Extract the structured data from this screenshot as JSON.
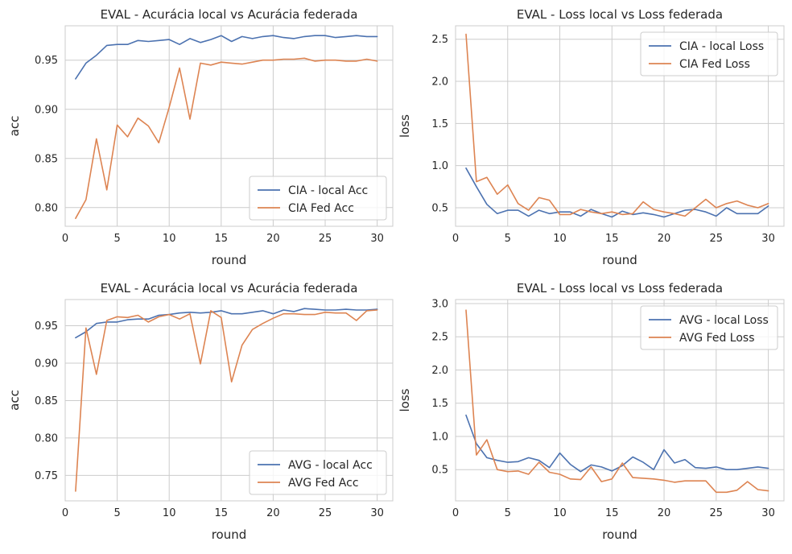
{
  "chart_data": [
    {
      "type": "line",
      "title": "EVAL - Acurácia local vs Acurácia federada",
      "xlabel": "round",
      "ylabel": "acc",
      "xlim": [
        0,
        31.5
      ],
      "ylim": [
        0.781,
        0.985
      ],
      "xticks": [
        0,
        5,
        10,
        15,
        20,
        25,
        30
      ],
      "yticks": [
        0.8,
        0.85,
        0.9,
        0.95
      ],
      "ytick_labels": [
        "0.80",
        "0.85",
        "0.90",
        "0.95"
      ],
      "grid": true,
      "legend": "lower-right",
      "x": [
        1,
        2,
        3,
        4,
        5,
        6,
        7,
        8,
        9,
        10,
        11,
        12,
        13,
        14,
        15,
        16,
        17,
        18,
        19,
        20,
        21,
        22,
        23,
        24,
        25,
        26,
        27,
        28,
        29,
        30
      ],
      "series": [
        {
          "name": "CIA - local Acc",
          "color": "#4c72b0",
          "values": [
            0.931,
            0.947,
            0.955,
            0.965,
            0.966,
            0.966,
            0.97,
            0.969,
            0.97,
            0.971,
            0.966,
            0.972,
            0.968,
            0.971,
            0.975,
            0.969,
            0.974,
            0.972,
            0.974,
            0.975,
            0.973,
            0.972,
            0.974,
            0.975,
            0.975,
            0.973,
            0.974,
            0.975,
            0.974,
            0.974
          ]
        },
        {
          "name": "CIA Fed Acc",
          "color": "#dd8452",
          "values": [
            0.789,
            0.808,
            0.87,
            0.818,
            0.884,
            0.872,
            0.891,
            0.883,
            0.866,
            0.902,
            0.942,
            0.89,
            0.947,
            0.945,
            0.948,
            0.947,
            0.946,
            0.948,
            0.95,
            0.95,
            0.951,
            0.951,
            0.952,
            0.949,
            0.95,
            0.95,
            0.949,
            0.949,
            0.951,
            0.949
          ]
        }
      ]
    },
    {
      "type": "line",
      "title": "EVAL - Loss local vs Loss federada",
      "xlabel": "round",
      "ylabel": "loss",
      "xlim": [
        0,
        31.5
      ],
      "ylim": [
        0.28,
        2.66
      ],
      "xticks": [
        0,
        5,
        10,
        15,
        20,
        25,
        30
      ],
      "yticks": [
        0.5,
        1.0,
        1.5,
        2.0,
        2.5
      ],
      "ytick_labels": [
        "0.5",
        "1.0",
        "1.5",
        "2.0",
        "2.5"
      ],
      "grid": true,
      "legend": "upper-right",
      "x": [
        1,
        2,
        3,
        4,
        5,
        6,
        7,
        8,
        9,
        10,
        11,
        12,
        13,
        14,
        15,
        16,
        17,
        18,
        19,
        20,
        21,
        22,
        23,
        24,
        25,
        26,
        27,
        28,
        29,
        30
      ],
      "series": [
        {
          "name": "CIA - local Loss",
          "color": "#4c72b0",
          "values": [
            0.97,
            0.75,
            0.54,
            0.43,
            0.47,
            0.47,
            0.4,
            0.47,
            0.43,
            0.45,
            0.45,
            0.4,
            0.48,
            0.43,
            0.39,
            0.46,
            0.42,
            0.44,
            0.42,
            0.39,
            0.43,
            0.47,
            0.48,
            0.45,
            0.4,
            0.5,
            0.43,
            0.43,
            0.43,
            0.52
          ]
        },
        {
          "name": "CIA Fed Loss",
          "color": "#dd8452",
          "values": [
            2.56,
            0.81,
            0.86,
            0.66,
            0.77,
            0.55,
            0.47,
            0.62,
            0.59,
            0.42,
            0.42,
            0.48,
            0.45,
            0.43,
            0.45,
            0.42,
            0.43,
            0.57,
            0.48,
            0.45,
            0.43,
            0.4,
            0.5,
            0.6,
            0.5,
            0.55,
            0.58,
            0.53,
            0.5,
            0.55
          ]
        }
      ]
    },
    {
      "type": "line",
      "title": "EVAL - Acurácia local vs Acurácia federada",
      "xlabel": "round",
      "ylabel": "acc",
      "xlim": [
        0,
        31.5
      ],
      "ylim": [
        0.716,
        0.985
      ],
      "xticks": [
        0,
        5,
        10,
        15,
        20,
        25,
        30
      ],
      "yticks": [
        0.75,
        0.8,
        0.85,
        0.9,
        0.95
      ],
      "ytick_labels": [
        "0.75",
        "0.80",
        "0.85",
        "0.90",
        "0.95"
      ],
      "grid": true,
      "legend": "lower-right",
      "x": [
        1,
        2,
        3,
        4,
        5,
        6,
        7,
        8,
        9,
        10,
        11,
        12,
        13,
        14,
        15,
        16,
        17,
        18,
        19,
        20,
        21,
        22,
        23,
        24,
        25,
        26,
        27,
        28,
        29,
        30
      ],
      "series": [
        {
          "name": "AVG - local Acc",
          "color": "#4c72b0",
          "values": [
            0.934,
            0.942,
            0.953,
            0.955,
            0.955,
            0.958,
            0.959,
            0.959,
            0.964,
            0.965,
            0.967,
            0.968,
            0.967,
            0.968,
            0.97,
            0.966,
            0.966,
            0.968,
            0.97,
            0.966,
            0.971,
            0.969,
            0.973,
            0.972,
            0.971,
            0.971,
            0.972,
            0.971,
            0.971,
            0.972
          ]
        },
        {
          "name": "AVG Fed Acc",
          "color": "#dd8452",
          "values": [
            0.729,
            0.947,
            0.885,
            0.957,
            0.962,
            0.961,
            0.964,
            0.955,
            0.962,
            0.965,
            0.959,
            0.966,
            0.899,
            0.97,
            0.961,
            0.875,
            0.924,
            0.945,
            0.953,
            0.96,
            0.966,
            0.966,
            0.965,
            0.965,
            0.968,
            0.967,
            0.967,
            0.957,
            0.97,
            0.971
          ]
        }
      ]
    },
    {
      "type": "line",
      "title": "EVAL - Loss local vs Loss federada",
      "xlabel": "round",
      "ylabel": "loss",
      "xlim": [
        0,
        31.5
      ],
      "ylim": [
        0.03,
        3.06
      ],
      "xticks": [
        0,
        5,
        10,
        15,
        20,
        25,
        30
      ],
      "yticks": [
        0.5,
        1.0,
        1.5,
        2.0,
        2.5,
        3.0
      ],
      "ytick_labels": [
        "0.5",
        "1.0",
        "1.5",
        "2.0",
        "2.5",
        "3.0"
      ],
      "grid": true,
      "legend": "upper-right",
      "x": [
        1,
        2,
        3,
        4,
        5,
        6,
        7,
        8,
        9,
        10,
        11,
        12,
        13,
        14,
        15,
        16,
        17,
        18,
        19,
        20,
        21,
        22,
        23,
        24,
        25,
        26,
        27,
        28,
        29,
        30
      ],
      "series": [
        {
          "name": "AVG - local Loss",
          "color": "#4c72b0",
          "values": [
            1.32,
            0.89,
            0.68,
            0.64,
            0.61,
            0.62,
            0.68,
            0.64,
            0.53,
            0.75,
            0.58,
            0.47,
            0.57,
            0.54,
            0.48,
            0.56,
            0.69,
            0.61,
            0.5,
            0.8,
            0.6,
            0.65,
            0.53,
            0.52,
            0.54,
            0.5,
            0.5,
            0.52,
            0.54,
            0.52
          ]
        },
        {
          "name": "AVG Fed Loss",
          "color": "#dd8452",
          "values": [
            2.9,
            0.72,
            0.95,
            0.5,
            0.47,
            0.48,
            0.43,
            0.61,
            0.46,
            0.43,
            0.36,
            0.35,
            0.54,
            0.32,
            0.36,
            0.6,
            0.38,
            0.37,
            0.36,
            0.34,
            0.31,
            0.33,
            0.33,
            0.33,
            0.16,
            0.16,
            0.19,
            0.32,
            0.2,
            0.18
          ]
        }
      ]
    }
  ]
}
